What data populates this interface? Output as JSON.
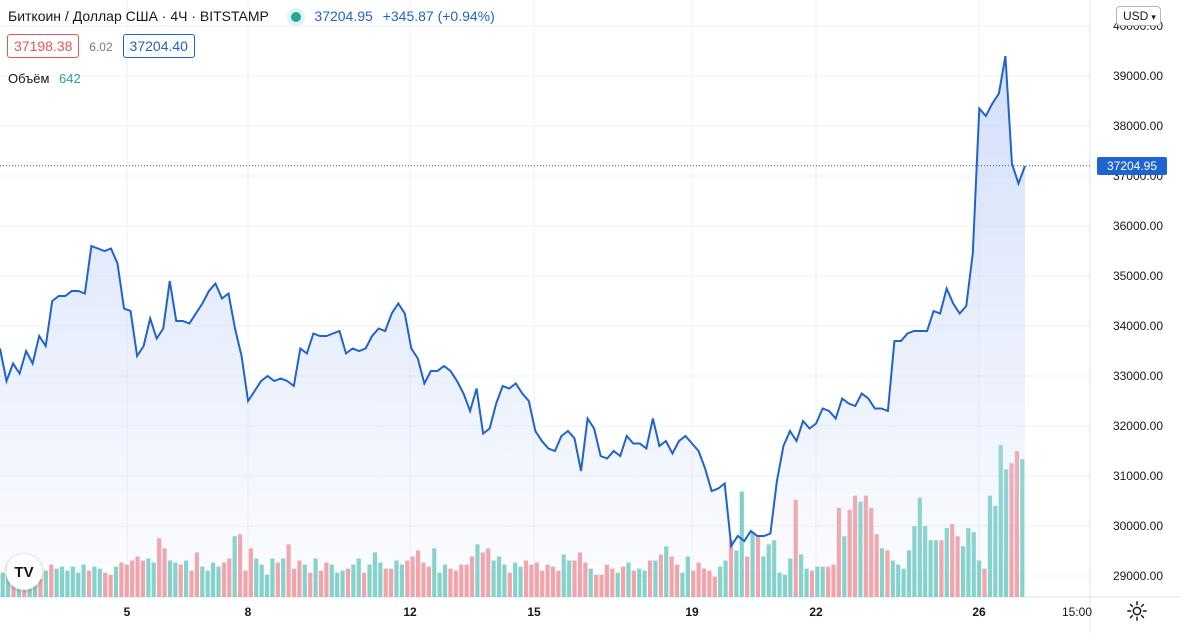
{
  "header": {
    "symbol_title": "Биткоин / Доллар США · 4Ч · BITSTAMP",
    "last_price": "37204.95",
    "change": "+345.87 (+0.94%)",
    "bid": "37198.38",
    "spread": "6.02",
    "ask": "37204.40",
    "volume_label": "Объём",
    "volume_value": "642"
  },
  "controls": {
    "currency": "USD",
    "price_tag": "37204.95",
    "logo_text": "TV"
  },
  "colors": {
    "line": "#1e63d0",
    "area_top": "#cfdcf9",
    "volume_up": "#7fd1c7",
    "volume_down": "#f4a0a3",
    "grid": "#eef0f3"
  },
  "chart_data": {
    "type": "line",
    "title": "Биткоин / Доллар США · 4Ч · BITSTAMP",
    "ylim": [
      28700,
      40000
    ],
    "y_ticks": [
      "29000.00",
      "30000.00",
      "31000.00",
      "32000.00",
      "33000.00",
      "34000.00",
      "35000.00",
      "36000.00",
      "37000.00",
      "38000.00",
      "39000.00",
      "40000.00"
    ],
    "x_ticks": [
      "5",
      "8",
      "12",
      "15",
      "19",
      "22",
      "26",
      "15:00"
    ],
    "grid": true,
    "series": [
      {
        "kind": "price",
        "values": [
          33550,
          32900,
          33250,
          33050,
          33500,
          33250,
          33800,
          33600,
          34500,
          34600,
          34600,
          34700,
          34700,
          34650,
          35600,
          35550,
          35500,
          35550,
          35250,
          34350,
          34300,
          33400,
          33600,
          34150,
          33750,
          33950,
          34900,
          34100,
          34100,
          34050,
          34250,
          34450,
          34700,
          34850,
          34550,
          34650,
          33950,
          33400,
          32500,
          32700,
          32900,
          33000,
          32900,
          32950,
          32900,
          32800,
          33550,
          33450,
          33850,
          33800,
          33800,
          33850,
          33900,
          33450,
          33550,
          33500,
          33550,
          33800,
          33950,
          33900,
          34250,
          34450,
          34250,
          33550,
          33350,
          32850,
          33100,
          33100,
          33200,
          33100,
          32900,
          32650,
          32300,
          32750,
          31850,
          31950,
          32450,
          32800,
          32750,
          32850,
          32650,
          32500,
          31900,
          31700,
          31550,
          31500,
          31800,
          31900,
          31750,
          31100,
          32150,
          31950,
          31400,
          31350,
          31500,
          31400,
          31800,
          31650,
          31650,
          31550,
          32150,
          31600,
          31700,
          31450,
          31700,
          31800,
          31650,
          31500,
          31150,
          30700,
          30750,
          30850,
          29600,
          29800,
          29700,
          29900,
          29800,
          29800,
          29850,
          30900,
          31600,
          31900,
          31700,
          32100,
          31950,
          32050,
          32350,
          32300,
          32150,
          32550,
          32450,
          32400,
          32650,
          32550,
          32350,
          32350,
          32300,
          33700,
          33700,
          33850,
          33900,
          33900,
          33900,
          34300,
          34250,
          34750,
          34450,
          34250,
          34400,
          35450,
          38350,
          38200,
          38450,
          38650,
          39400,
          37250,
          36850,
          37200
        ]
      },
      {
        "kind": "volume",
        "values": [
          12,
          15,
          10,
          14,
          12,
          11,
          10,
          9,
          13,
          16,
          14,
          15,
          13,
          15,
          12,
          16,
          13,
          15,
          14,
          12,
          11,
          15,
          17,
          16,
          18,
          20,
          18,
          19,
          17,
          29,
          24,
          18,
          17,
          16,
          18,
          13,
          22,
          15,
          13,
          17,
          15,
          17,
          19,
          30,
          31,
          13,
          24,
          19,
          16,
          11,
          19,
          17,
          19,
          26,
          14,
          18,
          16,
          12,
          19,
          13,
          17,
          16,
          12,
          13,
          14,
          16,
          19,
          12,
          16,
          22,
          17,
          14,
          14,
          18,
          16,
          18,
          20,
          23,
          17,
          15,
          24,
          12,
          16,
          14,
          13,
          16,
          16,
          20,
          26,
          22,
          24,
          18,
          20,
          16,
          12,
          17,
          15,
          18,
          16,
          17,
          13,
          16,
          15,
          13,
          21,
          18,
          18,
          22,
          17,
          14,
          11,
          11,
          16,
          14,
          12,
          15,
          17,
          13,
          14,
          13,
          18,
          18,
          21,
          25,
          20,
          16,
          12,
          20,
          13,
          17,
          14,
          13,
          10,
          15,
          18,
          28,
          23,
          52,
          20,
          32,
          30,
          20,
          26,
          28,
          12,
          11,
          19,
          48,
          21,
          14,
          13,
          15,
          15,
          15,
          16,
          44,
          30,
          43,
          50,
          47,
          50,
          44,
          31,
          24,
          23,
          18,
          16,
          14,
          23,
          35,
          49,
          35,
          28,
          28,
          28,
          34,
          36,
          30,
          25,
          34,
          32,
          18,
          14,
          50,
          45,
          75,
          63,
          66,
          72,
          68
        ]
      }
    ]
  }
}
